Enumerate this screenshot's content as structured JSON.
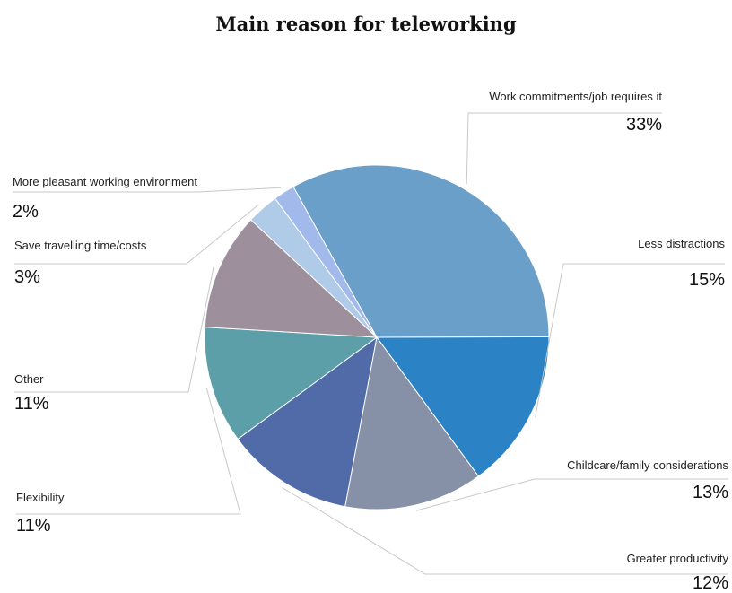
{
  "chart_data": {
    "type": "pie",
    "title": "Main reason for teleworking",
    "slices": [
      {
        "label": "Work commitments/job requires it",
        "value": 33,
        "display": "33%",
        "color": "#6a9fc9"
      },
      {
        "label": "Less distractions",
        "value": 15,
        "display": "15%",
        "color": "#2b83c6"
      },
      {
        "label": "Childcare/family considerations",
        "value": 13,
        "display": "13%",
        "color": "#8690a6"
      },
      {
        "label": "Greater productivity",
        "value": 12,
        "display": "12%",
        "color": "#506ba8"
      },
      {
        "label": "Flexibility",
        "value": 11,
        "display": "11%",
        "color": "#5d9fa8"
      },
      {
        "label": "Other",
        "value": 11,
        "display": "11%",
        "color": "#9e8f9d"
      },
      {
        "label": "Save travelling time/costs",
        "value": 3,
        "display": "3%",
        "color": "#b0cbe8"
      },
      {
        "label": "More pleasant working environment",
        "value": 2,
        "display": "2%",
        "color": "#a2b9ec"
      }
    ]
  }
}
